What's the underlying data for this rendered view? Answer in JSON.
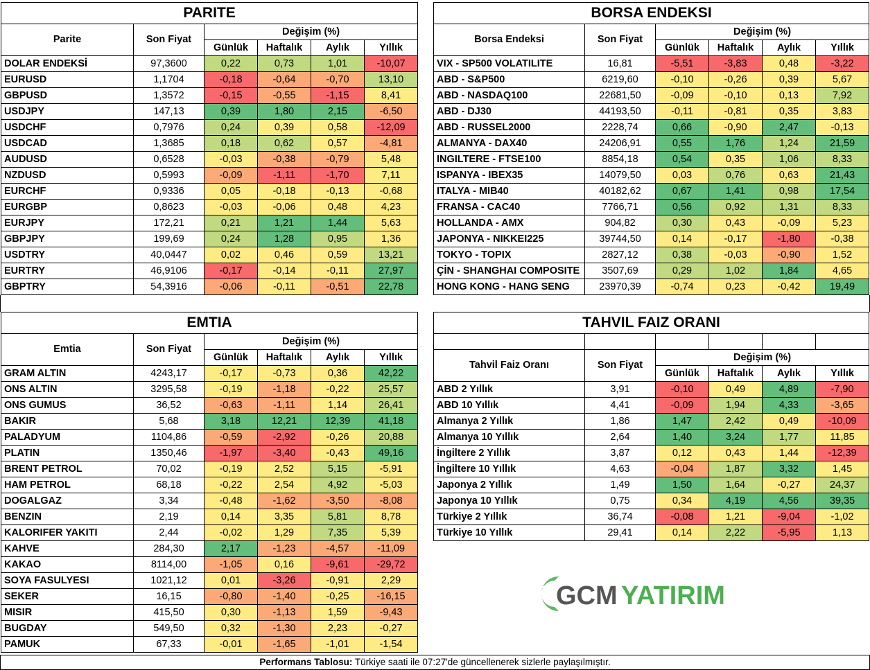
{
  "colors": {
    "red": "#F8696B",
    "orange": "#FBAA77",
    "yellow": "#FEEB84",
    "lightgreen": "#C1DA81",
    "green": "#63BE7B"
  },
  "parite": {
    "title": "PARITE",
    "col_name": "Parite",
    "col_price": "Son Fiyat",
    "col_change": "Değişim (%)",
    "col_d": "Günlük",
    "col_w": "Haftalık",
    "col_m": "Aylık",
    "col_y": "Yıllık",
    "rows": [
      {
        "name": "DOLAR ENDEKSİ",
        "price": "97,3600",
        "d": "0,22",
        "w": "0,73",
        "m": "1,01",
        "y": "-10,07"
      },
      {
        "name": "EURUSD",
        "price": "1,1704",
        "d": "-0,18",
        "w": "-0,64",
        "m": "-0,70",
        "y": "13,10"
      },
      {
        "name": "GBPUSD",
        "price": "1,3572",
        "d": "-0,15",
        "w": "-0,55",
        "m": "-1,15",
        "y": "8,41"
      },
      {
        "name": "USDJPY",
        "price": "147,13",
        "d": "0,39",
        "w": "1,80",
        "m": "2,15",
        "y": "-6,50"
      },
      {
        "name": "USDCHF",
        "price": "0,7976",
        "d": "0,24",
        "w": "0,39",
        "m": "0,58",
        "y": "-12,09"
      },
      {
        "name": "USDCAD",
        "price": "1,3685",
        "d": "0,18",
        "w": "0,62",
        "m": "0,57",
        "y": "-4,81"
      },
      {
        "name": "AUDUSD",
        "price": "0,6528",
        "d": "-0,03",
        "w": "-0,38",
        "m": "-0,79",
        "y": "5,48"
      },
      {
        "name": "NZDUSD",
        "price": "0,5993",
        "d": "-0,09",
        "w": "-1,11",
        "m": "-1,70",
        "y": "7,11"
      },
      {
        "name": "EURCHF",
        "price": "0,9336",
        "d": "0,05",
        "w": "-0,18",
        "m": "-0,13",
        "y": "-0,68"
      },
      {
        "name": "EURGBP",
        "price": "0,8623",
        "d": "-0,03",
        "w": "-0,06",
        "m": "0,48",
        "y": "4,23"
      },
      {
        "name": "EURJPY",
        "price": "172,21",
        "d": "0,21",
        "w": "1,21",
        "m": "1,44",
        "y": "5,63"
      },
      {
        "name": "GBPJPY",
        "price": "199,69",
        "d": "0,24",
        "w": "1,28",
        "m": "0,95",
        "y": "1,36"
      },
      {
        "name": "USDTRY",
        "price": "40,0447",
        "d": "0,02",
        "w": "0,46",
        "m": "0,59",
        "y": "13,21"
      },
      {
        "name": "EURTRY",
        "price": "46,9106",
        "d": "-0,17",
        "w": "-0,14",
        "m": "-0,11",
        "y": "27,97"
      },
      {
        "name": "GBPTRY",
        "price": "54,3916",
        "d": "-0,06",
        "w": "-0,11",
        "m": "-0,51",
        "y": "22,78"
      }
    ]
  },
  "borsa": {
    "title": "BORSA ENDEKSI",
    "col_name": "Borsa Endeksi",
    "col_price": "Son Fiyat",
    "col_change": "Değişim (%)",
    "col_d": "Günlük",
    "col_w": "Haftalık",
    "col_m": "Aylık",
    "col_y": "Yıllık",
    "rows": [
      {
        "name": "VIX  - SP500 VOLATILITE",
        "price": "16,81",
        "d": "-5,51",
        "w": "-3,83",
        "m": "0,48",
        "y": "-3,22"
      },
      {
        "name": "ABD - S&P500",
        "price": "6219,60",
        "d": "-0,10",
        "w": "-0,26",
        "m": "0,39",
        "y": "5,67"
      },
      {
        "name": "ABD - NASDAQ100",
        "price": "22681,50",
        "d": "-0,09",
        "w": "-0,10",
        "m": "0,13",
        "y": "7,92"
      },
      {
        "name": "ABD - DJ30",
        "price": "44193,50",
        "d": "-0,11",
        "w": "-0,81",
        "m": "0,35",
        "y": "3,83"
      },
      {
        "name": "ABD - RUSSEL2000",
        "price": "2228,74",
        "d": "0,66",
        "w": "-0,90",
        "m": "2,47",
        "y": "-0,13"
      },
      {
        "name": "ALMANYA - DAX40",
        "price": "24206,91",
        "d": "0,55",
        "w": "1,76",
        "m": "1,24",
        "y": "21,59"
      },
      {
        "name": "INGILTERE - FTSE100",
        "price": "8854,18",
        "d": "0,54",
        "w": "0,35",
        "m": "1,06",
        "y": "8,33"
      },
      {
        "name": "ISPANYA - IBEX35",
        "price": "14079,50",
        "d": "0,03",
        "w": "0,76",
        "m": "0,63",
        "y": "21,43"
      },
      {
        "name": "ITALYA - MIB40",
        "price": "40182,62",
        "d": "0,67",
        "w": "1,41",
        "m": "0,98",
        "y": "17,54"
      },
      {
        "name": "FRANSA - CAC40",
        "price": "7766,71",
        "d": "0,56",
        "w": "0,92",
        "m": "1,31",
        "y": "8,33"
      },
      {
        "name": "HOLLANDA - AMX",
        "price": "904,82",
        "d": "0,30",
        "w": "0,43",
        "m": "-0,09",
        "y": "5,23"
      },
      {
        "name": "JAPONYA - NIKKEI225",
        "price": "39744,50",
        "d": "0,14",
        "w": "-0,17",
        "m": "-1,80",
        "y": "-0,38"
      },
      {
        "name": "TOKYO - TOPIX",
        "price": "2827,12",
        "d": "0,38",
        "w": "-0,03",
        "m": "-0,90",
        "y": "1,52"
      },
      {
        "name": "ÇİN - SHANGHAI COMPOSITE",
        "price": "3507,69",
        "d": "0,29",
        "w": "1,02",
        "m": "1,84",
        "y": "4,65"
      },
      {
        "name": "HONG KONG - HANG SENG",
        "price": "23970,39",
        "d": "-0,74",
        "w": "0,23",
        "m": "-0,42",
        "y": "19,49"
      }
    ]
  },
  "emtia": {
    "title": "EMTIA",
    "col_name": "Emtia",
    "col_price": "Son Fiyat",
    "col_change": "Değişim (%)",
    "col_d": "Günlük",
    "col_w": "Haftalık",
    "col_m": "Aylık",
    "col_y": "Yıllık",
    "rows": [
      {
        "name": "GRAM ALTIN",
        "price": "4243,17",
        "d": "-0,17",
        "w": "-0,73",
        "m": "0,36",
        "y": "42,22"
      },
      {
        "name": "ONS ALTIN",
        "price": "3295,58",
        "d": "-0,19",
        "w": "-1,18",
        "m": "-0,22",
        "y": "25,57"
      },
      {
        "name": "ONS GUMUS",
        "price": "36,52",
        "d": "-0,63",
        "w": "-1,11",
        "m": "1,14",
        "y": "26,41"
      },
      {
        "name": "BAKIR",
        "price": "5,68",
        "d": "3,18",
        "w": "12,21",
        "m": "12,39",
        "y": "41,18"
      },
      {
        "name": "PALADYUM",
        "price": "1104,86",
        "d": "-0,59",
        "w": "-2,92",
        "m": "-0,26",
        "y": "20,88"
      },
      {
        "name": "PLATIN",
        "price": "1350,46",
        "d": "-1,97",
        "w": "-3,40",
        "m": "-0,43",
        "y": "49,16"
      },
      {
        "name": "BRENT PETROL",
        "price": "70,02",
        "d": "-0,19",
        "w": "2,52",
        "m": "5,15",
        "y": "-5,91"
      },
      {
        "name": "HAM PETROL",
        "price": "68,18",
        "d": "-0,22",
        "w": "2,54",
        "m": "4,92",
        "y": "-5,03"
      },
      {
        "name": "DOGALGAZ",
        "price": "3,34",
        "d": "-0,48",
        "w": "-1,62",
        "m": "-3,50",
        "y": "-8,08"
      },
      {
        "name": "BENZIN",
        "price": "2,19",
        "d": "0,14",
        "w": "3,35",
        "m": "5,81",
        "y": "8,78"
      },
      {
        "name": "KALORIFER YAKITI",
        "price": "2,44",
        "d": "-0,02",
        "w": "1,29",
        "m": "7,35",
        "y": "5,39"
      },
      {
        "name": "KAHVE",
        "price": "284,30",
        "d": "2,17",
        "w": "-1,23",
        "m": "-4,57",
        "y": "-11,09"
      },
      {
        "name": "KAKAO",
        "price": "8114,00",
        "d": "-1,05",
        "w": "0,16",
        "m": "-9,61",
        "y": "-29,72"
      },
      {
        "name": "SOYA FASULYESI",
        "price": "1021,12",
        "d": "0,01",
        "w": "-3,26",
        "m": "-0,91",
        "y": "2,29"
      },
      {
        "name": "SEKER",
        "price": "16,15",
        "d": "-0,80",
        "w": "-1,40",
        "m": "-0,25",
        "y": "-16,15"
      },
      {
        "name": "MISIR",
        "price": "415,50",
        "d": "0,30",
        "w": "-1,13",
        "m": "1,59",
        "y": "-9,43"
      },
      {
        "name": "BUGDAY",
        "price": "549,50",
        "d": "0,32",
        "w": "-1,30",
        "m": "2,23",
        "y": "-0,27"
      },
      {
        "name": "PAMUK",
        "price": "67,33",
        "d": "-0,01",
        "w": "-1,65",
        "m": "-1,01",
        "y": "-1,54"
      }
    ]
  },
  "tahvil": {
    "title": "TAHVIL FAIZ ORANI",
    "col_name": "Tahvil Faiz Oranı",
    "col_price": "Son Fiyat",
    "col_change": "Değişim (%)",
    "col_d": "Günlük",
    "col_w": "Haftalık",
    "col_m": "Aylık",
    "col_y": "Yıllık",
    "rows": [
      {
        "name": "ABD 2 Yıllık",
        "price": "3,91",
        "d": "-0,10",
        "w": "0,49",
        "m": "4,89",
        "y": "-7,90"
      },
      {
        "name": "ABD 10 Yıllık",
        "price": "4,41",
        "d": "-0,09",
        "w": "1,94",
        "m": "4,33",
        "y": "-3,65"
      },
      {
        "name": "Almanya 2 Yıllık",
        "price": "1,86",
        "d": "1,47",
        "w": "2,42",
        "m": "0,49",
        "y": "-10,09"
      },
      {
        "name": "Almanya 10 Yıllık",
        "price": "2,64",
        "d": "1,40",
        "w": "3,24",
        "m": "1,77",
        "y": "11,85"
      },
      {
        "name": "İngiltere 2 Yıllık",
        "price": "3,87",
        "d": "0,12",
        "w": "0,43",
        "m": "1,44",
        "y": "-12,39"
      },
      {
        "name": "İngiltere 10 Yıllık",
        "price": "4,63",
        "d": "-0,04",
        "w": "1,87",
        "m": "3,32",
        "y": "1,45"
      },
      {
        "name": "Japonya 2 Yıllık",
        "price": "1,49",
        "d": "1,50",
        "w": "1,64",
        "m": "-0,27",
        "y": "24,37"
      },
      {
        "name": "Japonya 10 Yıllık",
        "price": "0,75",
        "d": "0,34",
        "w": "4,19",
        "m": "4,56",
        "y": "39,35"
      },
      {
        "name": "Türkiye 2 Yıllık",
        "price": "36,74",
        "d": "-0,08",
        "w": "1,21",
        "m": "-9,04",
        "y": "-1,02"
      },
      {
        "name": "Türkiye 10 Yıllık",
        "price": "29,41",
        "d": "0,14",
        "w": "2,22",
        "m": "-5,95",
        "y": "1,13"
      }
    ]
  },
  "logo": {
    "text_gcm": "GCM",
    "text_yatirim": "YATIRIM"
  },
  "footer": {
    "bold": "Performans Tablosu:",
    "text": " Türkiye saati ile 07:27'de güncellenerek sizlerle paylaşılmıştır."
  }
}
